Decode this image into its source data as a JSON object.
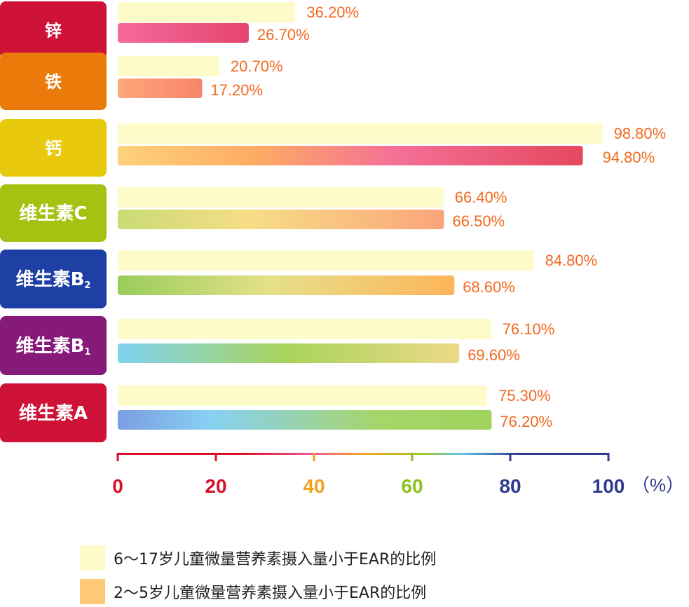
{
  "chart_data": {
    "type": "bar",
    "orientation": "horizontal",
    "categories": [
      {
        "name": "锌",
        "sub": "",
        "color": "#cf1237"
      },
      {
        "name": "铁",
        "sub": "",
        "color": "#ea7a0a"
      },
      {
        "name": "钙",
        "sub": "",
        "color": "#e8c90e"
      },
      {
        "name": "维生素C",
        "sub": "",
        "color": "#a5c212"
      },
      {
        "name": "维生素B",
        "sub": "2",
        "color": "#1e3fa3"
      },
      {
        "name": "维生素B",
        "sub": "1",
        "color": "#861a78"
      },
      {
        "name": "维生素A",
        "sub": "",
        "color": "#cf1237"
      }
    ],
    "series": [
      {
        "name": "6～17岁儿童微量营养素摄入量小于EAR的比例",
        "values": [
          36.2,
          20.7,
          98.8,
          66.4,
          84.8,
          76.1,
          75.3
        ],
        "labels": [
          "36.20%",
          "20.70%",
          "98.80%",
          "66.40%",
          "84.80%",
          "76.10%",
          "75.30%"
        ],
        "color": "#fefbcb"
      },
      {
        "name": "2～5岁儿童微量营养素摄入量小于EAR的比例",
        "values": [
          26.7,
          17.2,
          94.8,
          66.5,
          68.6,
          69.6,
          76.2
        ],
        "labels": [
          "26.70%",
          "17.20%",
          "94.80%",
          "66.50%",
          "68.60%",
          "69.60%",
          "76.20%"
        ],
        "color": "#fdc978"
      }
    ],
    "x_ticks": [
      "0",
      "20",
      "40",
      "60",
      "80",
      "100"
    ],
    "x_tick_colors": [
      "#d8102a",
      "#d8102a",
      "#f3a21c",
      "#8cc11b",
      "#2f3a8f",
      "#2f3a8f"
    ],
    "x_unit": "（%）",
    "xlim": [
      0,
      100
    ],
    "legend_position": "bottom-left",
    "value_label_color": "#f26a21"
  }
}
